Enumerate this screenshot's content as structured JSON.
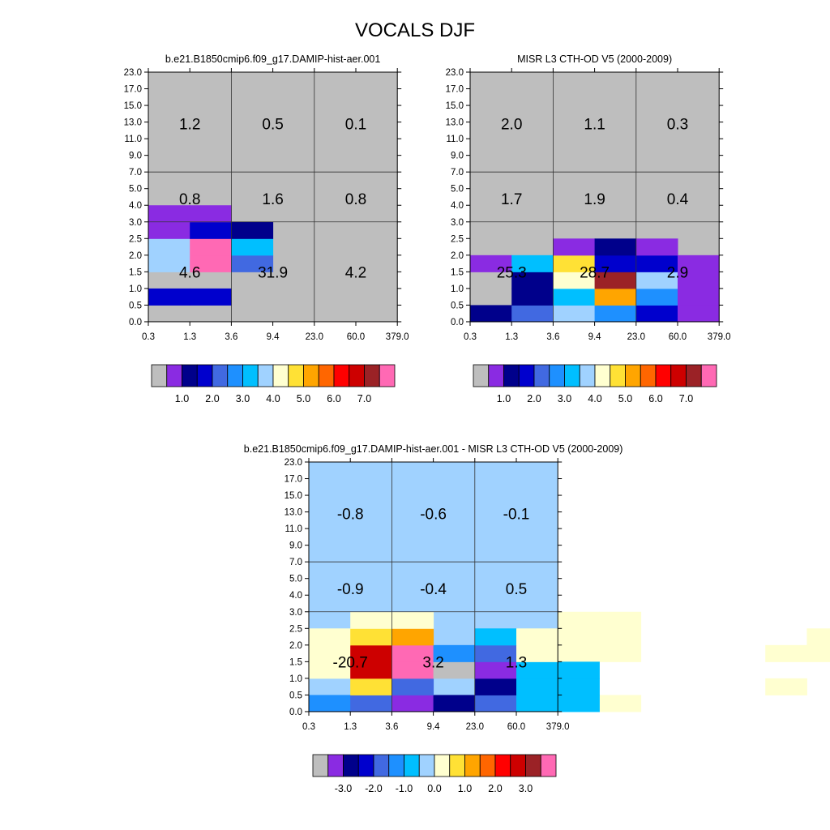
{
  "figure": {
    "title": "VOCALS DJF"
  },
  "chart_data": [
    {
      "type": "heatmap",
      "title": "b.e21.B1850cmip6.f09_g17.DAMIP-hist-aer.001",
      "xlabel": "",
      "ylabel": "",
      "x_edges": [
        "0.3",
        "1.3",
        "3.6",
        "9.4",
        "23.0",
        "60.0",
        "379.0"
      ],
      "y_edges": [
        "0.0",
        "0.5",
        "1.0",
        "1.5",
        "2.0",
        "2.5",
        "3.0",
        "4.0",
        "5.0",
        "7.0",
        "9.0",
        "11.0",
        "13.0",
        "15.0",
        "17.0",
        "23.0"
      ],
      "default_color": "#bebebe",
      "cells": [
        [
          1,
          1,
          0,
          "#0000cd"
        ],
        [
          1,
          1,
          1,
          "#0000cd"
        ],
        [
          3,
          1,
          0,
          "#a0d2ff"
        ],
        [
          3,
          1,
          1,
          "#ff69b4"
        ],
        [
          3,
          1,
          2,
          "#4169e1"
        ],
        [
          4,
          1,
          0,
          "#a0d2ff"
        ],
        [
          4,
          1,
          1,
          "#ff69b4"
        ],
        [
          4,
          1,
          2,
          "#00bfff"
        ],
        [
          5,
          1,
          0,
          "#8a2be2"
        ],
        [
          5,
          1,
          1,
          "#0000cd"
        ],
        [
          5,
          1,
          2,
          "#00008b"
        ],
        [
          6,
          1,
          0,
          "#8a2be2"
        ],
        [
          6,
          1,
          1,
          "#8a2be2"
        ]
      ],
      "group_values": [
        [
          "4.6",
          "31.9",
          "4.2"
        ],
        [
          "0.8",
          "1.6",
          "0.8"
        ],
        [
          "1.2",
          "0.5",
          "0.1"
        ]
      ],
      "colorbar": {
        "colors": [
          "#bebebe",
          "#8a2be2",
          "#00008b",
          "#0000cd",
          "#4169e1",
          "#1e90ff",
          "#00bfff",
          "#a0d2ff",
          "#ffffd0",
          "#ffe135",
          "#ffa500",
          "#ff6600",
          "#ff0000",
          "#cd0000",
          "#9b2226",
          "#ff69b4"
        ],
        "tick_labels": [
          "1.0",
          "2.0",
          "3.0",
          "4.0",
          "5.0",
          "6.0",
          "7.0"
        ]
      }
    },
    {
      "type": "heatmap",
      "title": "MISR L3 CTH-OD V5 (2000-2009)",
      "xlabel": "",
      "ylabel": "",
      "x_edges": [
        "0.3",
        "1.3",
        "3.6",
        "9.4",
        "23.0",
        "60.0",
        "379.0"
      ],
      "y_edges": [
        "0.0",
        "0.5",
        "1.0",
        "1.5",
        "2.0",
        "2.5",
        "3.0",
        "4.0",
        "5.0",
        "7.0",
        "9.0",
        "11.0",
        "13.0",
        "15.0",
        "17.0",
        "23.0"
      ],
      "default_color": "#bebebe",
      "cells": [
        [
          0,
          0,
          0,
          "#00008b"
        ],
        [
          0,
          0,
          1,
          "#4169e1"
        ],
        [
          0,
          0,
          2,
          "#a0d2ff"
        ],
        [
          0,
          0,
          3,
          "#1e90ff"
        ],
        [
          0,
          0,
          4,
          "#0000cd"
        ],
        [
          0,
          0,
          5,
          "#8a2be2"
        ],
        [
          1,
          0,
          1,
          "#00008b"
        ],
        [
          1,
          0,
          2,
          "#00bfff"
        ],
        [
          1,
          0,
          3,
          "#ffa500"
        ],
        [
          1,
          0,
          4,
          "#1e90ff"
        ],
        [
          1,
          0,
          5,
          "#8a2be2"
        ],
        [
          2,
          0,
          1,
          "#00008b"
        ],
        [
          2,
          0,
          2,
          "#ffffd0"
        ],
        [
          2,
          0,
          3,
          "#9b2226"
        ],
        [
          2,
          0,
          4,
          "#a0d2ff"
        ],
        [
          2,
          0,
          5,
          "#8a2be2"
        ],
        [
          3,
          0,
          0,
          "#8a2be2"
        ],
        [
          3,
          0,
          1,
          "#00bfff"
        ],
        [
          3,
          0,
          2,
          "#ffe135"
        ],
        [
          3,
          0,
          3,
          "#0000cd"
        ],
        [
          3,
          0,
          4,
          "#0000cd"
        ],
        [
          3,
          0,
          5,
          "#8a2be2"
        ],
        [
          4,
          0,
          2,
          "#8a2be2"
        ],
        [
          4,
          0,
          3,
          "#00008b"
        ],
        [
          4,
          0,
          4,
          "#8a2be2"
        ]
      ],
      "group_values": [
        [
          "25.3",
          "28.7",
          "2.9"
        ],
        [
          "1.7",
          "1.9",
          "0.4"
        ],
        [
          "2.0",
          "1.1",
          "0.3"
        ]
      ],
      "colorbar": {
        "colors": [
          "#bebebe",
          "#8a2be2",
          "#00008b",
          "#0000cd",
          "#4169e1",
          "#1e90ff",
          "#00bfff",
          "#a0d2ff",
          "#ffffd0",
          "#ffe135",
          "#ffa500",
          "#ff6600",
          "#ff0000",
          "#cd0000",
          "#9b2226",
          "#ff69b4"
        ],
        "tick_labels": [
          "1.0",
          "2.0",
          "3.0",
          "4.0",
          "5.0",
          "6.0",
          "7.0"
        ]
      }
    },
    {
      "type": "heatmap",
      "title": "b.e21.B1850cmip6.f09_g17.DAMIP-hist-aer.001 - MISR L3 CTH-OD V5 (2000-2009)",
      "xlabel": "",
      "ylabel": "",
      "x_edges": [
        "0.3",
        "1.3",
        "3.6",
        "9.4",
        "23.0",
        "60.0",
        "379.0"
      ],
      "y_edges": [
        "0.0",
        "0.5",
        "1.0",
        "1.5",
        "2.0",
        "2.5",
        "3.0",
        "4.0",
        "5.0",
        "7.0",
        "9.0",
        "11.0",
        "13.0",
        "15.0",
        "17.0",
        "23.0"
      ],
      "default_color": "#a0d2ff",
      "cells": [
        [
          0,
          0,
          0,
          "#1e90ff"
        ],
        [
          0,
          0,
          1,
          "#4169e1"
        ],
        [
          0,
          0,
          2,
          "#8a2be2"
        ],
        [
          0,
          0,
          3,
          "#00008b"
        ],
        [
          0,
          0,
          4,
          "#4169e1"
        ],
        [
          0,
          0,
          5,
          "#00bfff"
        ],
        [
          0,
          0,
          7,
          "#ffffd0"
        ],
        [
          1,
          0,
          1,
          "#ffe135"
        ],
        [
          1,
          0,
          2,
          "#4169e1"
        ],
        [
          1,
          0,
          4,
          "#00008b"
        ],
        [
          1,
          0,
          5,
          "#00bfff"
        ],
        [
          1,
          0,
          11,
          "#ffffd0"
        ],
        [
          2,
          0,
          0,
          "#ffffd0"
        ],
        [
          2,
          0,
          1,
          "#cd0000"
        ],
        [
          2,
          0,
          2,
          "#ff69b4"
        ],
        [
          2,
          0,
          3,
          "#bebebe"
        ],
        [
          2,
          0,
          4,
          "#8a2be2"
        ],
        [
          2,
          0,
          5,
          "#00bfff"
        ],
        [
          3,
          0,
          0,
          "#ffffd0"
        ],
        [
          3,
          0,
          1,
          "#cd0000"
        ],
        [
          3,
          0,
          2,
          "#ff69b4"
        ],
        [
          3,
          0,
          3,
          "#1e90ff"
        ],
        [
          3,
          0,
          4,
          "#4169e1"
        ],
        [
          3,
          0,
          5,
          "#ffffd0"
        ],
        [
          3,
          0,
          6,
          "#ffffd0"
        ],
        [
          3,
          0,
          7,
          "#ffffd0"
        ],
        [
          3,
          0,
          11,
          "#ffffd0"
        ],
        [
          3,
          0,
          12,
          "#ffffd0"
        ],
        [
          4,
          0,
          0,
          "#ffffd0"
        ],
        [
          4,
          0,
          1,
          "#ffe135"
        ],
        [
          4,
          0,
          2,
          "#ffa500"
        ],
        [
          4,
          0,
          4,
          "#00bfff"
        ],
        [
          4,
          0,
          5,
          "#ffffd0"
        ],
        [
          4,
          0,
          6,
          "#ffffd0"
        ],
        [
          4,
          0,
          7,
          "#ffffd0"
        ],
        [
          4,
          0,
          12,
          "#ffffd0"
        ],
        [
          5,
          0,
          1,
          "#ffffd0"
        ],
        [
          5,
          0,
          2,
          "#ffffd0"
        ],
        [
          5,
          0,
          6,
          "#ffffd0"
        ],
        [
          5,
          0,
          7,
          "#ffffd0"
        ],
        [
          0,
          0,
          6,
          "#00bfff"
        ],
        [
          1,
          0,
          6,
          "#00bfff"
        ],
        [
          2,
          0,
          6,
          "#00bfff"
        ]
      ],
      "group_values": [
        [
          "-20.7",
          "3.2",
          "1.3"
        ],
        [
          "-0.9",
          "-0.4",
          "0.5"
        ],
        [
          "-0.8",
          "-0.6",
          "-0.1"
        ]
      ],
      "colorbar": {
        "colors": [
          "#bebebe",
          "#8a2be2",
          "#00008b",
          "#0000cd",
          "#4169e1",
          "#1e90ff",
          "#00bfff",
          "#a0d2ff",
          "#ffffd0",
          "#ffe135",
          "#ffa500",
          "#ff6600",
          "#ff0000",
          "#cd0000",
          "#9b2226",
          "#ff69b4"
        ],
        "tick_labels": [
          "-3.0",
          "-2.0",
          "-1.0",
          "0.0",
          "1.0",
          "2.0",
          "3.0"
        ]
      }
    }
  ]
}
